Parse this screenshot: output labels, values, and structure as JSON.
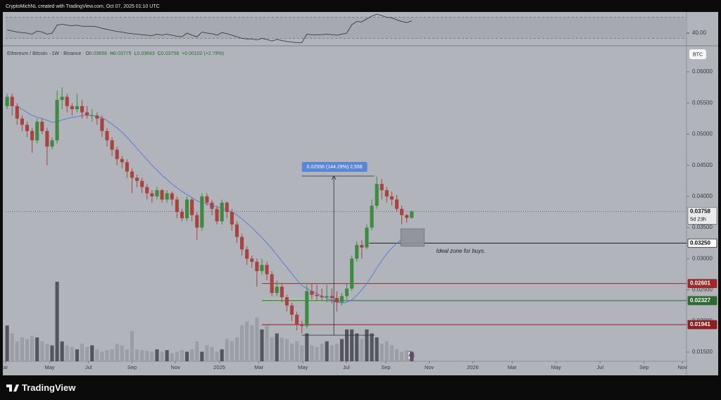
{
  "header": "CryptoMichNL created with TradingView.com, Oct 07, 2025 01:10 UTC",
  "footer_logo": "TradingView",
  "chart_data": {
    "type": "candlestick",
    "symbol": "Ethereum / Bitcoin · 1W · Binance",
    "ohlc_prefixes": [
      "O",
      "H",
      "L",
      "C"
    ],
    "change": "+0.00102 (+2.79%)",
    "currency_button": "BTC",
    "up_color": "#3f8a43",
    "down_color": "#a9433f",
    "candles": [
      [
        0.0545,
        0.0565,
        0.054,
        0.056
      ],
      [
        0.056,
        0.0565,
        0.053,
        0.0545
      ],
      [
        0.0545,
        0.055,
        0.0515,
        0.0525
      ],
      [
        0.0525,
        0.053,
        0.0505,
        0.0515
      ],
      [
        0.0515,
        0.052,
        0.0495,
        0.0505
      ],
      [
        0.0505,
        0.051,
        0.047,
        0.049
      ],
      [
        0.049,
        0.0525,
        0.0485,
        0.052
      ],
      [
        0.052,
        0.0525,
        0.05,
        0.0505
      ],
      [
        0.0505,
        0.051,
        0.045,
        0.048
      ],
      [
        0.048,
        0.0495,
        0.0475,
        0.049
      ],
      [
        0.049,
        0.057,
        0.0485,
        0.0555
      ],
      [
        0.0555,
        0.0575,
        0.054,
        0.056
      ],
      [
        0.056,
        0.0565,
        0.0535,
        0.0545
      ],
      [
        0.0545,
        0.055,
        0.053,
        0.054
      ],
      [
        0.054,
        0.0565,
        0.0535,
        0.0545
      ],
      [
        0.0545,
        0.0555,
        0.0525,
        0.0535
      ],
      [
        0.0535,
        0.0545,
        0.0525,
        0.053
      ],
      [
        0.053,
        0.054,
        0.052,
        0.053
      ],
      [
        0.053,
        0.0535,
        0.0515,
        0.0525
      ],
      [
        0.0525,
        0.053,
        0.0495,
        0.0505
      ],
      [
        0.0505,
        0.051,
        0.048,
        0.049
      ],
      [
        0.049,
        0.0495,
        0.0465,
        0.0475
      ],
      [
        0.0475,
        0.048,
        0.045,
        0.046
      ],
      [
        0.046,
        0.0465,
        0.0445,
        0.0455
      ],
      [
        0.0455,
        0.046,
        0.043,
        0.044
      ],
      [
        0.044,
        0.0445,
        0.0405,
        0.043
      ],
      [
        0.043,
        0.0435,
        0.0415,
        0.0425
      ],
      [
        0.0425,
        0.043,
        0.0405,
        0.0415
      ],
      [
        0.0415,
        0.042,
        0.0395,
        0.0405
      ],
      [
        0.0405,
        0.041,
        0.039,
        0.04
      ],
      [
        0.04,
        0.0415,
        0.0395,
        0.041
      ],
      [
        0.041,
        0.0412,
        0.039,
        0.0395
      ],
      [
        0.0395,
        0.041,
        0.039,
        0.0405
      ],
      [
        0.0405,
        0.0408,
        0.0385,
        0.0395
      ],
      [
        0.0395,
        0.04,
        0.0365,
        0.0375
      ],
      [
        0.0375,
        0.038,
        0.036,
        0.0365
      ],
      [
        0.0365,
        0.04,
        0.036,
        0.0395
      ],
      [
        0.0395,
        0.0398,
        0.036,
        0.037
      ],
      [
        0.037,
        0.0375,
        0.033,
        0.035
      ],
      [
        0.035,
        0.0405,
        0.0345,
        0.04
      ],
      [
        0.04,
        0.0405,
        0.0385,
        0.039
      ],
      [
        0.039,
        0.0395,
        0.037,
        0.038
      ],
      [
        0.038,
        0.0385,
        0.0355,
        0.036
      ],
      [
        0.036,
        0.0395,
        0.0355,
        0.039
      ],
      [
        0.039,
        0.0392,
        0.0365,
        0.0375
      ],
      [
        0.0375,
        0.038,
        0.0345,
        0.0355
      ],
      [
        0.0355,
        0.036,
        0.0325,
        0.0335
      ],
      [
        0.0335,
        0.034,
        0.0305,
        0.0315
      ],
      [
        0.0315,
        0.032,
        0.029,
        0.03
      ],
      [
        0.03,
        0.0305,
        0.0285,
        0.0295
      ],
      [
        0.0295,
        0.03,
        0.0255,
        0.028
      ],
      [
        0.028,
        0.03,
        0.0275,
        0.029
      ],
      [
        0.029,
        0.0295,
        0.0265,
        0.0275
      ],
      [
        0.0275,
        0.028,
        0.024,
        0.0245
      ],
      [
        0.0245,
        0.0265,
        0.024,
        0.0255
      ],
      [
        0.0255,
        0.026,
        0.023,
        0.0238
      ],
      [
        0.0238,
        0.0242,
        0.0215,
        0.0225
      ],
      [
        0.0225,
        0.023,
        0.02,
        0.021
      ],
      [
        0.021,
        0.0215,
        0.0185,
        0.0195
      ],
      [
        0.0195,
        0.02,
        0.018,
        0.0192
      ],
      [
        0.0192,
        0.0258,
        0.0188,
        0.0248
      ],
      [
        0.0248,
        0.026,
        0.0235,
        0.0242
      ],
      [
        0.0242,
        0.0258,
        0.0232,
        0.024
      ],
      [
        0.024,
        0.0252,
        0.0232,
        0.0238
      ],
      [
        0.0238,
        0.0258,
        0.023,
        0.024
      ],
      [
        0.024,
        0.0252,
        0.0228,
        0.0237
      ],
      [
        0.0237,
        0.0248,
        0.0215,
        0.023
      ],
      [
        0.023,
        0.0245,
        0.0225,
        0.024
      ],
      [
        0.024,
        0.026,
        0.0235,
        0.0252
      ],
      [
        0.0252,
        0.0305,
        0.0248,
        0.03
      ],
      [
        0.03,
        0.0328,
        0.0295,
        0.0322
      ],
      [
        0.0322,
        0.033,
        0.03,
        0.0318
      ],
      [
        0.0318,
        0.0355,
        0.0315,
        0.035
      ],
      [
        0.035,
        0.0395,
        0.0345,
        0.0385
      ],
      [
        0.0385,
        0.0432,
        0.038,
        0.042
      ],
      [
        0.042,
        0.0428,
        0.0395,
        0.041
      ],
      [
        0.041,
        0.0415,
        0.039,
        0.04
      ],
      [
        0.04,
        0.0408,
        0.0385,
        0.0395
      ],
      [
        0.0395,
        0.0402,
        0.0375,
        0.038
      ],
      [
        0.038,
        0.0385,
        0.0355,
        0.037
      ],
      [
        0.037,
        0.0372,
        0.0358,
        0.03656
      ],
      [
        0.03656,
        0.03775,
        0.03643,
        0.03758
      ]
    ],
    "ma": {
      "color": "#5b7fd6",
      "values": [
        null,
        null,
        0.0545,
        0.054,
        0.0535,
        0.053,
        0.0527,
        0.0525,
        0.0522,
        0.0519,
        0.052,
        0.0523,
        0.0525,
        0.0527,
        0.0528,
        0.053,
        0.0531,
        0.053,
        0.0529,
        0.0526,
        0.0522,
        0.0516,
        0.051,
        0.0503,
        0.0495,
        0.0486,
        0.0477,
        0.0468,
        0.0459,
        0.045,
        0.0442,
        0.0434,
        0.0427,
        0.042,
        0.0414,
        0.0408,
        0.0403,
        0.0398,
        0.0393,
        0.039,
        0.0388,
        0.0386,
        0.0383,
        0.0381,
        0.0378,
        0.0375,
        0.037,
        0.0364,
        0.0357,
        0.035,
        0.0342,
        0.0334,
        0.0325,
        0.0316,
        0.0306,
        0.0296,
        0.0286,
        0.0276,
        0.0266,
        0.0257,
        0.0252,
        0.0248,
        0.0244,
        0.024,
        0.0236,
        0.0233,
        0.023,
        0.0229,
        0.023,
        0.0234,
        0.0241,
        0.025,
        0.026,
        0.0272,
        0.0285,
        0.0297,
        0.0308,
        0.0317,
        0.0325,
        0.0331,
        0.0336,
        0.034
      ]
    },
    "volume": {
      "ylim": [
        0,
        100
      ],
      "up_color": "#54565b",
      "down_color": "#9b9ea4",
      "values": [
        45,
        35,
        25,
        30,
        28,
        32,
        30,
        25,
        22,
        20,
        100,
        25,
        20,
        18,
        15,
        22,
        18,
        20,
        15,
        12,
        14,
        15,
        22,
        20,
        15,
        38,
        15,
        14,
        13,
        12,
        15,
        12,
        14,
        10,
        12,
        14,
        12,
        15,
        25,
        12,
        20,
        18,
        12,
        15,
        28,
        25,
        30,
        45,
        50,
        45,
        55,
        40,
        45,
        30,
        35,
        30,
        28,
        22,
        25,
        20,
        35,
        20,
        18,
        22,
        25,
        20,
        22,
        28,
        40,
        40,
        35,
        28,
        40,
        35,
        30,
        22,
        25,
        20,
        15,
        12,
        14,
        12
      ]
    },
    "rsi": {
      "color": "#2a2b2e",
      "ylim": [
        20,
        80
      ],
      "band": [
        30,
        70
      ],
      "yticks": [
        {
          "value": 40,
          "label": "40.00"
        }
      ],
      "values": [
        46,
        44,
        42,
        41,
        40,
        38,
        44,
        42,
        38,
        40,
        55,
        57,
        55,
        54,
        55,
        53,
        53,
        53,
        52,
        49,
        47,
        45,
        43,
        42,
        40,
        39,
        38,
        37,
        36,
        35,
        38,
        36,
        38,
        36,
        34,
        33,
        40,
        36,
        33,
        42,
        40,
        39,
        36,
        41,
        39,
        36,
        33,
        30,
        29,
        29,
        27,
        30,
        28,
        25,
        28,
        26,
        24,
        23,
        22,
        22,
        38,
        37,
        37,
        37,
        38,
        37,
        36,
        38,
        40,
        56,
        62,
        61,
        67,
        72,
        76,
        73,
        70,
        69,
        65,
        62,
        60,
        63
      ]
    },
    "ylim": [
      0.01353,
      0.06419
    ],
    "yticks": [
      {
        "value": 0.06,
        "label": "0.06000"
      },
      {
        "value": 0.055,
        "label": "0.05500"
      },
      {
        "value": 0.05,
        "label": "0.05000"
      },
      {
        "value": 0.045,
        "label": "0.04500"
      },
      {
        "value": 0.04,
        "label": "0.04000"
      },
      {
        "value": 0.035,
        "label": "0.03500"
      },
      {
        "value": 0.03,
        "label": "0.03000"
      },
      {
        "value": 0.025,
        "label": "0.02500"
      },
      {
        "value": 0.02,
        "label": "0.02000"
      },
      {
        "value": 0.015,
        "label": "0.01500"
      }
    ],
    "xlim": [
      -0.3,
      136
    ],
    "xticks": [
      {
        "value": -0.3,
        "label": "ar"
      },
      {
        "value": 8.5,
        "label": "May"
      },
      {
        "value": 16.3,
        "label": "Jul"
      },
      {
        "value": 25,
        "label": "Sep"
      },
      {
        "value": 33.7,
        "label": "Nov"
      },
      {
        "value": 42.5,
        "label": "2025"
      },
      {
        "value": 50.4,
        "label": "Mar"
      },
      {
        "value": 59.2,
        "label": "May"
      },
      {
        "value": 67.9,
        "label": "Jul"
      },
      {
        "value": 75.8,
        "label": "Sep"
      },
      {
        "value": 84.5,
        "label": "Nov"
      },
      {
        "value": 93.2,
        "label": "2026"
      },
      {
        "value": 101.1,
        "label": "Mar"
      },
      {
        "value": 109.9,
        "label": "May"
      },
      {
        "value": 118.7,
        "label": "Jul"
      },
      {
        "value": 127.5,
        "label": "Sep"
      },
      {
        "value": 135.2,
        "label": "Nov"
      }
    ],
    "last_price": {
      "value": 0.03758,
      "label": "0.03758",
      "countdown": "5d 23h"
    },
    "levels": [
      {
        "value": 0.0325,
        "label": "0.03250",
        "color": "#1c1c1c",
        "badge": "#ffffff",
        "text_color": "#000000",
        "start": 72.5
      },
      {
        "value": 0.02601,
        "label": "0.02601",
        "color": "#9c2a2a",
        "badge": "#9c2a2a",
        "text_color": "#ffffff",
        "start": 51
      },
      {
        "value": 0.02327,
        "label": "0.02327",
        "color": "#2f6a33",
        "badge": "#2f6a33",
        "text_color": "#ffffff",
        "start": 51
      },
      {
        "value": 0.01941,
        "label": "0.01941",
        "color": "#8e1f1f",
        "badge": "#8e1f1f",
        "text_color": "#ffffff",
        "start": 51
      }
    ],
    "zone": {
      "ylim": [
        0.032,
        0.0348
      ],
      "xlim": [
        78.8,
        83.5
      ],
      "label": "Ideal zone for buys."
    },
    "range_box": {
      "ylim": [
        0.023,
        0.0237
      ],
      "xlim": [
        51,
        64
      ]
    },
    "measure": {
      "label": "0.02556 (144.29%) 2,556",
      "from": 0.01771,
      "to": 0.04327,
      "xlim": [
        59,
        73.5
      ]
    }
  }
}
